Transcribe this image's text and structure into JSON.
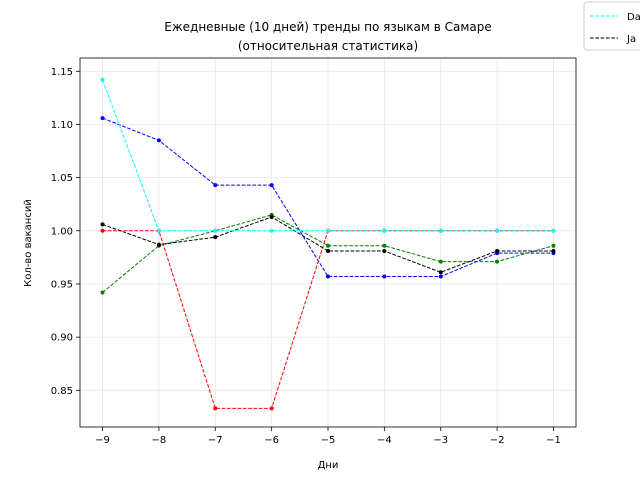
{
  "chart_data": {
    "type": "line",
    "title": "Ежедневные (10 дней) тренды по языкам в Самаре",
    "subtitle": "(относительная статистика)",
    "xlabel": "Дни",
    "ylabel": "Кол-во вакансий",
    "x": [
      -9,
      -8,
      -7,
      -6,
      -5,
      -4,
      -3,
      -2,
      -1
    ],
    "x_tick_labels": [
      "−9",
      "−8",
      "−7",
      "−6",
      "−5",
      "−4",
      "−3",
      "−2",
      "−1"
    ],
    "y_ticks": [
      0.85,
      0.9,
      0.95,
      1.0,
      1.05,
      1.1,
      1.15
    ],
    "y_tick_labels": [
      "0.85",
      "0.90",
      "0.95",
      "1.00",
      "1.05",
      "1.10",
      "1.15"
    ],
    "xlim": [
      -9.4,
      -0.6
    ],
    "ylim": [
      0.8155,
      1.1625
    ],
    "grid": true,
    "legend_position": "top-right, partially cut off",
    "series": [
      {
        "name": "Da",
        "color": "#00ffff",
        "values": [
          1.142,
          1.0,
          1.0,
          1.0,
          1.0,
          1.0,
          1.0,
          1.0,
          1.0
        ]
      },
      {
        "name": "Ja",
        "color": "#000000",
        "values": [
          1.006,
          0.987,
          0.994,
          1.013,
          0.981,
          0.981,
          0.961,
          0.981,
          0.981
        ]
      },
      {
        "color": "#0000ff",
        "values": [
          1.106,
          1.085,
          1.043,
          1.043,
          0.957,
          0.957,
          0.957,
          0.979,
          0.979
        ]
      },
      {
        "color": "#ff0000",
        "values": [
          1.0,
          1.0,
          0.833,
          0.833,
          1.0,
          1.0,
          1.0,
          1.0,
          1.0
        ]
      },
      {
        "color": "#008000",
        "values": [
          0.942,
          0.986,
          1.0,
          1.015,
          0.986,
          0.986,
          0.971,
          0.971,
          0.986
        ]
      }
    ],
    "draw_order": [
      2,
      3,
      4,
      1,
      0
    ]
  }
}
